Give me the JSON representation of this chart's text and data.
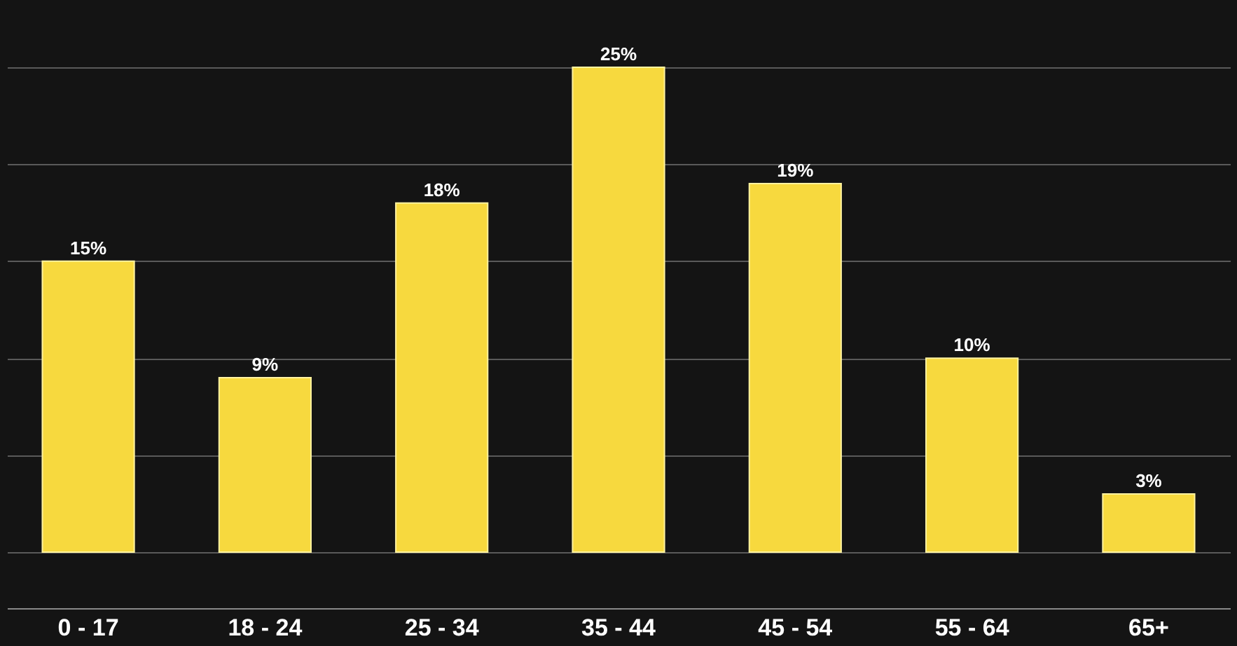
{
  "chart_data": {
    "type": "bar",
    "categories": [
      "0 - 17",
      "18 - 24",
      "25 - 34",
      "35 - 44",
      "45 - 54",
      "55 - 64",
      "65+"
    ],
    "values": [
      15,
      9,
      18,
      25,
      19,
      10,
      3
    ],
    "value_labels": [
      "15%",
      "9%",
      "18%",
      "25%",
      "19%",
      "10%",
      "3%"
    ],
    "color": "#f7d93e",
    "yticks": [
      {
        "value": 0,
        "label": null
      },
      {
        "value": 5,
        "label": null
      },
      {
        "value": 10,
        "label": null
      },
      {
        "value": 15,
        "label": null
      },
      {
        "value": 20,
        "label": null
      },
      {
        "value": 25,
        "label": null
      }
    ],
    "grid": "y",
    "tick_labels": "x"
  }
}
